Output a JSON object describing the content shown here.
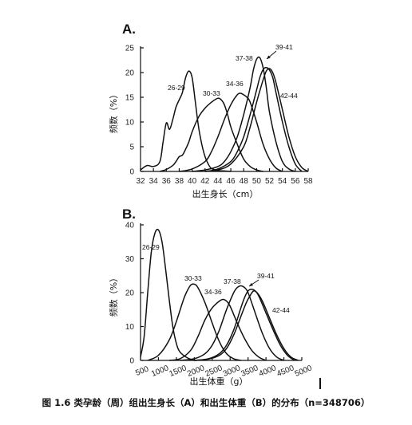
{
  "caption": "图 1.6 类孕龄（周）组出生身长（A）和出生体重（B）的分布（n=348706）",
  "chart_data": [
    {
      "type": "line",
      "panel_label": "A.",
      "xlabel": "出生身长（cm）",
      "ylabel": "频数（%）",
      "xlim": [
        32,
        58
      ],
      "ylim": [
        0,
        25
      ],
      "xticks": [
        "32",
        "34",
        "36",
        "38",
        "40",
        "42",
        "44",
        "46",
        "48",
        "50",
        "52",
        "54",
        "56",
        "58"
      ],
      "yticks": [
        "0",
        "5",
        "10",
        "15",
        "20",
        "25"
      ],
      "grid": false,
      "series": [
        {
          "name": "26-29",
          "x": [
            32,
            33,
            34,
            35,
            35.5,
            36,
            36.5,
            37,
            37.5,
            38,
            38.5,
            39,
            39.5,
            40,
            40.5,
            41,
            41.5,
            42,
            42.5,
            43,
            44,
            45,
            46
          ],
          "y": [
            0.3,
            1.2,
            1,
            2,
            6,
            9.8,
            8.5,
            10.5,
            13,
            14.5,
            16,
            19,
            20.3,
            19,
            14,
            9,
            5.5,
            3,
            1.5,
            0.6,
            0.2,
            0.1,
            0
          ]
        },
        {
          "name": "30-33",
          "x": [
            35,
            36,
            37,
            37.5,
            38,
            38.5,
            39,
            39.5,
            40,
            41,
            42,
            43,
            44,
            44.5,
            45,
            45.5,
            46,
            47,
            48,
            49,
            50,
            51
          ],
          "y": [
            0,
            0.4,
            1.2,
            2,
            3,
            3.3,
            4.5,
            6,
            8,
            11,
            12.8,
            14,
            14.8,
            14.5,
            13.5,
            11.5,
            9,
            5.5,
            2.5,
            1,
            0.3,
            0
          ]
        },
        {
          "name": "34-36",
          "x": [
            38,
            40,
            42,
            43,
            44,
            45,
            46,
            47,
            47.5,
            48,
            48.5,
            49,
            50,
            51,
            52,
            53,
            54
          ],
          "y": [
            0,
            0.5,
            2,
            4,
            7,
            10.5,
            13.5,
            15.5,
            15.8,
            15.5,
            15,
            14,
            10,
            5.5,
            2.5,
            0.7,
            0
          ]
        },
        {
          "name": "37-38",
          "x": [
            40,
            42,
            44,
            45,
            46,
            47,
            48,
            49,
            49.5,
            50,
            50.5,
            51,
            51.5,
            52,
            53,
            54,
            55,
            56
          ],
          "y": [
            0,
            0.3,
            1,
            2,
            4,
            7,
            11.5,
            17,
            20.5,
            22.7,
            23,
            21,
            17,
            12,
            6,
            2,
            0.5,
            0
          ]
        },
        {
          "name": "39-41",
          "x": [
            42,
            44,
            46,
            47,
            48,
            49,
            50,
            50.5,
            51,
            51.5,
            52,
            52.5,
            53,
            54,
            55,
            56,
            57
          ],
          "y": [
            0,
            0.5,
            2,
            4,
            7,
            11.5,
            16.5,
            19,
            20.6,
            21,
            20.5,
            19,
            16,
            10,
            5,
            1.5,
            0
          ]
        },
        {
          "name": "42-44",
          "x": [
            42,
            44,
            46,
            48,
            49,
            50,
            51,
            51.5,
            52,
            52.5,
            53,
            54,
            55,
            56,
            57,
            58
          ],
          "y": [
            0,
            0.3,
            1.5,
            5,
            9,
            14,
            18.5,
            20.3,
            20.8,
            20,
            18,
            12.5,
            7,
            3,
            0.8,
            0
          ]
        }
      ],
      "annotations": [
        "26-29",
        "30-33",
        "34-36",
        "37-38",
        "39-41",
        "42-44"
      ]
    },
    {
      "type": "line",
      "panel_label": "B.",
      "xlabel": "出生体重（g）",
      "ylabel": "频数（%）",
      "xlim": [
        500,
        5000
      ],
      "ylim": [
        0,
        40
      ],
      "xticks": [
        "500",
        "1000",
        "1500",
        "2000",
        "2500",
        "3000",
        "3500",
        "4000",
        "4500",
        "5000"
      ],
      "yticks": [
        "0",
        "10",
        "20",
        "30",
        "40"
      ],
      "grid": false,
      "series": [
        {
          "name": "26-29",
          "x": [
            500,
            600,
            700,
            800,
            900,
            1000,
            1100,
            1200,
            1300,
            1400,
            1500,
            1600,
            1800,
            2000
          ],
          "y": [
            1,
            7,
            20,
            32,
            37.5,
            38.5,
            35,
            27,
            18,
            10,
            5,
            2.5,
            0.8,
            0
          ]
        },
        {
          "name": "30-33",
          "x": [
            700,
            1000,
            1300,
            1500,
            1700,
            1800,
            1900,
            2000,
            2100,
            2300,
            2500,
            2700,
            2900,
            3100,
            3300
          ],
          "y": [
            0,
            1.5,
            6,
            11.5,
            18,
            20.5,
            22.2,
            22.5,
            21.5,
            17,
            11,
            5.5,
            2,
            0.5,
            0
          ]
        },
        {
          "name": "34-36",
          "x": [
            1300,
            1600,
            1900,
            2100,
            2300,
            2500,
            2700,
            2800,
            2900,
            3000,
            3200,
            3400,
            3600,
            3800,
            4000
          ],
          "y": [
            0,
            0.5,
            3,
            7,
            12,
            15.5,
            17.5,
            18,
            17.5,
            16,
            11,
            6.5,
            3,
            1,
            0
          ]
        },
        {
          "name": "37-38",
          "x": [
            1600,
            2000,
            2300,
            2500,
            2700,
            2900,
            3100,
            3200,
            3300,
            3400,
            3500,
            3700,
            3900,
            4100,
            4300,
            4500
          ],
          "y": [
            0,
            0.5,
            2,
            4.5,
            9,
            15,
            20,
            21.5,
            22,
            21.5,
            20,
            14,
            8,
            3.5,
            1,
            0
          ]
        },
        {
          "name": "39-41",
          "x": [
            2000,
            2400,
            2700,
            2900,
            3100,
            3300,
            3400,
            3500,
            3600,
            3700,
            3800,
            4000,
            4200,
            4400,
            4600,
            4800
          ],
          "y": [
            0,
            0.5,
            2,
            4.5,
            9,
            15.5,
            18.5,
            20.5,
            21,
            20.5,
            19,
            14,
            9,
            4.5,
            1.5,
            0
          ]
        },
        {
          "name": "42-44",
          "x": [
            2000,
            2400,
            2700,
            2900,
            3100,
            3300,
            3450,
            3550,
            3650,
            3750,
            3900,
            4100,
            4300,
            4500,
            4700,
            4900
          ],
          "y": [
            0,
            0.4,
            1.5,
            3.5,
            7.5,
            13,
            17,
            19,
            20.5,
            20,
            17.5,
            12.5,
            7.5,
            3.5,
            1,
            0
          ]
        }
      ],
      "annotations": [
        "26-29",
        "30-33",
        "34-36",
        "37-38",
        "39-41",
        "42-44"
      ]
    }
  ]
}
